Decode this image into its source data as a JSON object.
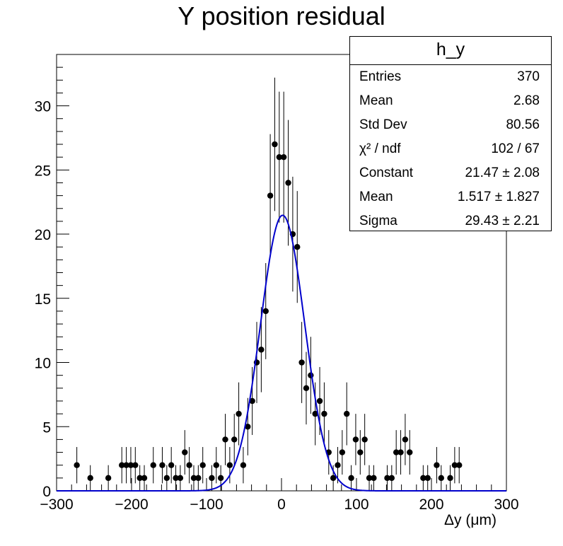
{
  "chart_data": {
    "type": "scatter",
    "title": "Y position residual",
    "xlabel": "Δy (μm)",
    "ylabel": "",
    "xlim": [
      -300,
      300
    ],
    "ylim": [
      0,
      34
    ],
    "xticks": [
      "−300",
      "−200",
      "−100",
      "0",
      "100",
      "200",
      "300"
    ],
    "yticks": [
      "0",
      "5",
      "10",
      "15",
      "20",
      "25",
      "30"
    ],
    "grid": false,
    "bin_width": 6,
    "series": [
      {
        "kind": "histogram-points",
        "color": "#000000",
        "x": [
          -273,
          -255,
          -231,
          -213,
          -207,
          -201,
          -195,
          -189,
          -183,
          -171,
          -159,
          -153,
          -147,
          -141,
          -135,
          -129,
          -123,
          -117,
          -111,
          -105,
          -93,
          -87,
          -81,
          -75,
          -69,
          -63,
          -57,
          -51,
          -45,
          -39,
          -33,
          -27,
          -21,
          -15,
          -9,
          -3,
          3,
          9,
          15,
          21,
          27,
          33,
          39,
          45,
          51,
          57,
          63,
          69,
          75,
          81,
          87,
          93,
          99,
          105,
          111,
          117,
          123,
          141,
          147,
          153,
          159,
          165,
          171,
          189,
          195,
          207,
          213,
          225,
          231,
          237
        ],
        "y": [
          2,
          1,
          1,
          2,
          2,
          2,
          2,
          1,
          1,
          2,
          2,
          1,
          2,
          1,
          1,
          3,
          2,
          1,
          1,
          2,
          1,
          2,
          1,
          4,
          2,
          4,
          6,
          2,
          5,
          7,
          10,
          11,
          14,
          23,
          27,
          26,
          26,
          24,
          20,
          19,
          10,
          8,
          9,
          6,
          7,
          6,
          3,
          1,
          2,
          3,
          6,
          1,
          4,
          3,
          4,
          1,
          1,
          1,
          1,
          3,
          3,
          4,
          3,
          1,
          1,
          2,
          1,
          1,
          2,
          2
        ]
      },
      {
        "kind": "gaussian-fit",
        "color": "#0000cc",
        "constant": 21.47,
        "mean": 1.517,
        "sigma": 29.43
      }
    ]
  },
  "stats_box": {
    "title": "h_y",
    "rows": [
      {
        "label": "Entries",
        "value": "370"
      },
      {
        "label": "Mean",
        "value": "2.68"
      },
      {
        "label": "Std Dev",
        "value": "80.56"
      },
      {
        "label": "χ² / ndf",
        "value": "102 / 67"
      },
      {
        "label": "Constant",
        "value": "21.47 ± 2.08"
      },
      {
        "label": "Mean",
        "value": "1.517 ± 1.827"
      },
      {
        "label": "Sigma",
        "value": "29.43 ± 2.21"
      }
    ]
  }
}
